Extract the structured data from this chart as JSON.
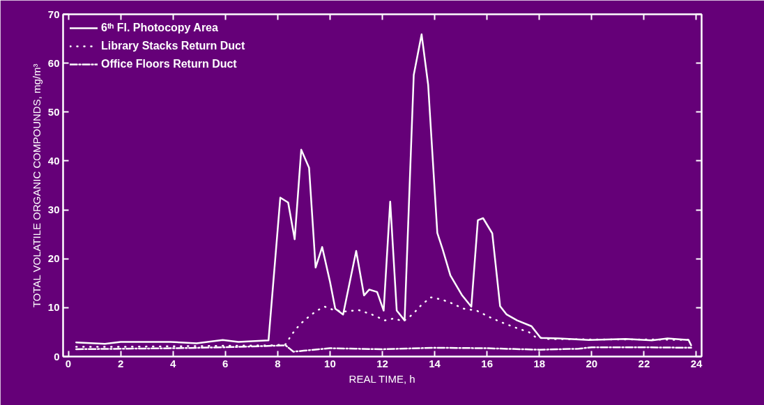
{
  "chart_data": {
    "type": "line",
    "xlabel": "REAL TIME, h",
    "ylabel": "TOTAL VOLATILE ORGANIC COMPOUNDS, mg/m³",
    "xlim": [
      -0.2,
      24.2
    ],
    "ylim": [
      0,
      70
    ],
    "xticks": [
      0,
      2,
      4,
      6,
      8,
      10,
      12,
      14,
      16,
      18,
      20,
      22,
      24
    ],
    "yticks": [
      0,
      10,
      20,
      30,
      40,
      50,
      60,
      70
    ],
    "grid": false,
    "legend": "top left",
    "marker": "none",
    "series": [
      {
        "name": "6ᵗʰ Fl. Photocopy Area",
        "color": "#ffffff",
        "line_style": "solid",
        "x": [
          0.3,
          1.4,
          2.0,
          3.9,
          4.9,
          5.9,
          6.5,
          7.65,
          8.1,
          8.4,
          8.65,
          8.9,
          9.2,
          9.45,
          9.7,
          10.0,
          10.2,
          10.5,
          11.0,
          11.3,
          11.5,
          11.8,
          12.05,
          12.3,
          12.55,
          12.85,
          13.2,
          13.5,
          13.75,
          14.1,
          14.3,
          14.6,
          15.05,
          15.4,
          15.65,
          15.85,
          16.2,
          16.5,
          16.75,
          17.15,
          17.7,
          18.05,
          18.75,
          19.9,
          21.3,
          22.3,
          22.9,
          23.7,
          23.8
        ],
        "values": [
          2.9,
          2.6,
          3.0,
          3.0,
          2.7,
          3.4,
          3.0,
          3.3,
          32.5,
          31.5,
          24,
          42.3,
          38.6,
          18.2,
          22.4,
          15.3,
          9.8,
          8.6,
          21.6,
          12.5,
          13.7,
          13.2,
          9.4,
          31.7,
          9.4,
          7.4,
          57.6,
          65.9,
          55.6,
          25.3,
          22.0,
          16.6,
          12.5,
          10.2,
          27.9,
          28.3,
          25.2,
          10.3,
          8.6,
          7.4,
          6.2,
          3.8,
          3.7,
          3.4,
          3.6,
          3.3,
          3.7,
          3.4,
          2.3
        ]
      },
      {
        "name": "Library Stacks Return Duct",
        "color": "#ffffff",
        "line_style": "dotted",
        "x": [
          0.3,
          2.0,
          4.0,
          6.0,
          7.8,
          8.3,
          8.55,
          8.85,
          9.2,
          9.5,
          9.8,
          10.15,
          10.55,
          11.1,
          11.6,
          12.1,
          12.45,
          12.8,
          13.15,
          13.5,
          13.85,
          14.25,
          14.65,
          15.1,
          15.6,
          16.2,
          16.65,
          17.15,
          17.6,
          17.85,
          18.3,
          20.0,
          22.0,
          23.8
        ],
        "values": [
          2.0,
          2.0,
          2.1,
          2.2,
          2.3,
          2.5,
          4.6,
          6.6,
          8.2,
          9.4,
          10.2,
          9.5,
          9.2,
          9.5,
          8.6,
          7.4,
          7.8,
          7.2,
          8.6,
          10.6,
          12.1,
          11.7,
          10.9,
          9.8,
          9.4,
          7.8,
          6.8,
          5.8,
          5.0,
          4.0,
          3.6,
          3.5,
          3.5,
          3.4
        ]
      },
      {
        "name": "Office Floors Return Duct",
        "color": "#ffffff",
        "line_style": "dashed",
        "x": [
          0.3,
          2.0,
          4.0,
          6.0,
          7.8,
          8.3,
          8.6,
          9.0,
          10.0,
          12.0,
          14.0,
          16.0,
          18.0,
          19.5,
          20.0,
          22.0,
          23.8
        ],
        "values": [
          1.5,
          1.6,
          1.7,
          1.9,
          2.2,
          2.3,
          1.0,
          1.2,
          1.7,
          1.5,
          1.8,
          1.7,
          1.4,
          1.6,
          1.9,
          1.9,
          1.8
        ]
      }
    ]
  }
}
